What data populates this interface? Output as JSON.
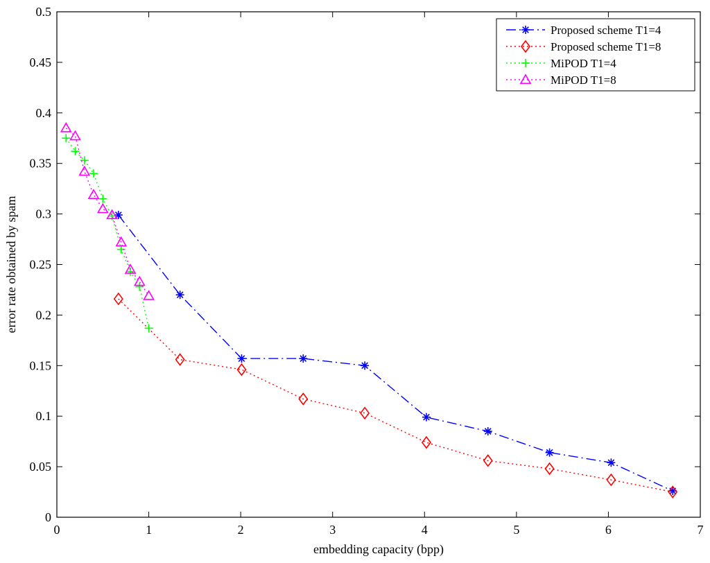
{
  "chart_data": {
    "type": "line",
    "title": "",
    "xlabel": "embedding capacity (bpp)",
    "ylabel": "error rate obtained by spam",
    "xlim": [
      0,
      7
    ],
    "ylim": [
      0,
      0.5
    ],
    "xticks": [
      0,
      1,
      2,
      3,
      4,
      5,
      6,
      7
    ],
    "xtick_labels": [
      "0",
      "1",
      "2",
      "3",
      "4",
      "5",
      "6",
      "7"
    ],
    "yticks": [
      0,
      0.05,
      0.1,
      0.15,
      0.2,
      0.25,
      0.3,
      0.35,
      0.4,
      0.45,
      0.5
    ],
    "ytick_labels": [
      "0",
      "0.05",
      "0.1",
      "0.15",
      "0.2",
      "0.25",
      "0.3",
      "0.35",
      "0.4",
      "0.45",
      "0.5"
    ],
    "grid": false,
    "legend_position": "top-right",
    "series": [
      {
        "name": "Proposed scheme T1=4",
        "color": "#0000ff",
        "line_style": "dash-dot",
        "marker": "asterisk",
        "x": [
          0.67,
          1.34,
          2.01,
          2.68,
          3.35,
          4.02,
          4.69,
          5.36,
          6.03,
          6.7
        ],
        "y": [
          0.299,
          0.22,
          0.157,
          0.157,
          0.15,
          0.099,
          0.085,
          0.064,
          0.054,
          0.026
        ]
      },
      {
        "name": "Proposed scheme T1=8",
        "color": "#ff0000",
        "line_style": "dotted",
        "marker": "diamond",
        "x": [
          0.67,
          1.34,
          2.01,
          2.68,
          3.35,
          4.02,
          4.69,
          5.36,
          6.03,
          6.7
        ],
        "y": [
          0.216,
          0.156,
          0.146,
          0.117,
          0.103,
          0.074,
          0.056,
          0.048,
          0.037,
          0.025
        ]
      },
      {
        "name": "MiPOD T1=4",
        "color": "#00ff00",
        "line_style": "dotted",
        "marker": "plus",
        "x": [
          0.1,
          0.2,
          0.3,
          0.4,
          0.5,
          0.6,
          0.7,
          0.8,
          0.9,
          1.0
        ],
        "y": [
          0.375,
          0.362,
          0.353,
          0.34,
          0.315,
          0.298,
          0.265,
          0.243,
          0.228,
          0.187
        ]
      },
      {
        "name": "MiPOD T1=8",
        "color": "#ff00ff",
        "line_style": "dotted",
        "marker": "triangle",
        "x": [
          0.1,
          0.2,
          0.3,
          0.4,
          0.5,
          0.6,
          0.7,
          0.8,
          0.9,
          1.0
        ],
        "y": [
          0.385,
          0.377,
          0.342,
          0.319,
          0.305,
          0.299,
          0.272,
          0.245,
          0.233,
          0.219
        ]
      }
    ]
  }
}
